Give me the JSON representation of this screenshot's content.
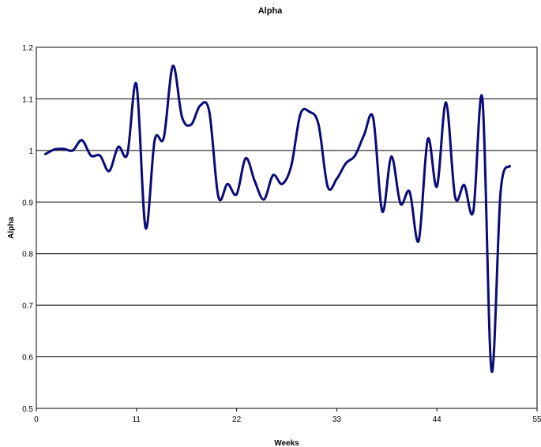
{
  "chart_data": {
    "type": "line",
    "title": "Alpha",
    "xlabel": "Weeks",
    "ylabel": "Alpha",
    "xlim": [
      0,
      55
    ],
    "ylim": [
      0.5,
      1.2
    ],
    "xticks": [
      0,
      11,
      22,
      33,
      44,
      55
    ],
    "yticks": [
      0.5,
      0.6,
      0.7,
      0.8,
      0.9,
      1,
      1.1,
      1.2
    ],
    "grid": "horizontal",
    "colors": {
      "line": "#0a0a78",
      "grid": "#000000",
      "plot_border": "#000000"
    },
    "series": [
      {
        "x": [
          1,
          2,
          3,
          4,
          5,
          6,
          7,
          8,
          9,
          10,
          11,
          12,
          13,
          14,
          15,
          16,
          17,
          18,
          19,
          20,
          21,
          22,
          23,
          24,
          25,
          26,
          27,
          28,
          29,
          30,
          31,
          32,
          33,
          34,
          35,
          36,
          37,
          38,
          39,
          40,
          41,
          42,
          43,
          44,
          45,
          46,
          47,
          48,
          49,
          50,
          51,
          52
        ],
        "y": [
          0.993,
          1.002,
          1.003,
          1.0,
          1.02,
          0.99,
          0.99,
          0.96,
          1.007,
          0.993,
          1.128,
          0.85,
          1.02,
          1.025,
          1.164,
          1.065,
          1.05,
          1.087,
          1.075,
          0.91,
          0.935,
          0.915,
          0.985,
          0.94,
          0.905,
          0.952,
          0.935,
          0.97,
          1.07,
          1.075,
          1.05,
          0.93,
          0.945,
          0.975,
          0.99,
          1.03,
          1.063,
          0.882,
          0.988,
          0.897,
          0.92,
          0.825,
          1.022,
          0.93,
          1.093,
          0.91,
          0.933,
          0.882,
          1.1,
          0.573,
          0.92,
          0.97
        ]
      }
    ]
  }
}
